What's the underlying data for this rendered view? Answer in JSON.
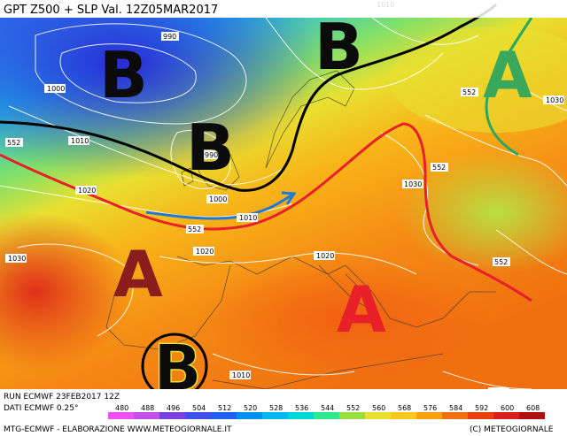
{
  "header": {
    "title": "GPT Z500 + SLP Val. 12Z05MAR2017"
  },
  "footer": {
    "run": "RUN ECMWF 23FEB2017 12Z",
    "data": "DATI ECMWF 0.25°",
    "credits": "MTG-ECMWF - ELABORAZIONE WWW.METEOGIORNALE.IT",
    "copyright": "(C) METEOGIORNALE"
  },
  "pressure_centers": [
    {
      "id": "low-atlantic",
      "label": "B",
      "color": "#0b0b0b"
    },
    {
      "id": "low-scandinavia",
      "label": "B",
      "color": "#0b0b0b"
    },
    {
      "id": "low-north-sea",
      "label": "B",
      "color": "#0b0b0b"
    },
    {
      "id": "high-russia",
      "label": "A",
      "color": "#3aa85a"
    },
    {
      "id": "high-iberia",
      "label": "A",
      "color": "#8b1d1d"
    },
    {
      "id": "high-mediterranean",
      "label": "A",
      "color": "#e8202a"
    },
    {
      "id": "low-north-africa",
      "label": "B",
      "color": "#0b0b0b"
    }
  ],
  "isobar_labels": [
    "990",
    "1000",
    "1010",
    "990",
    "1000",
    "1010",
    "1020",
    "1010",
    "1030",
    "1020",
    "1020",
    "1030",
    "1010",
    "1020",
    "1030"
  ],
  "z500_labels": [
    "552",
    "552",
    "552",
    "552",
    "552"
  ],
  "color_scale": {
    "values": [
      "480",
      "488",
      "496",
      "504",
      "512",
      "520",
      "528",
      "536",
      "544",
      "552",
      "560",
      "568",
      "576",
      "584",
      "592",
      "600",
      "608"
    ],
    "colors": [
      "#f050f0",
      "#c050e8",
      "#7a40e0",
      "#4050e8",
      "#2060f0",
      "#0090f0",
      "#00b8f0",
      "#00d8d8",
      "#30e890",
      "#98e040",
      "#e8e030",
      "#f8c820",
      "#f8a010",
      "#f07010",
      "#e84010",
      "#d82020",
      "#b01010"
    ]
  }
}
